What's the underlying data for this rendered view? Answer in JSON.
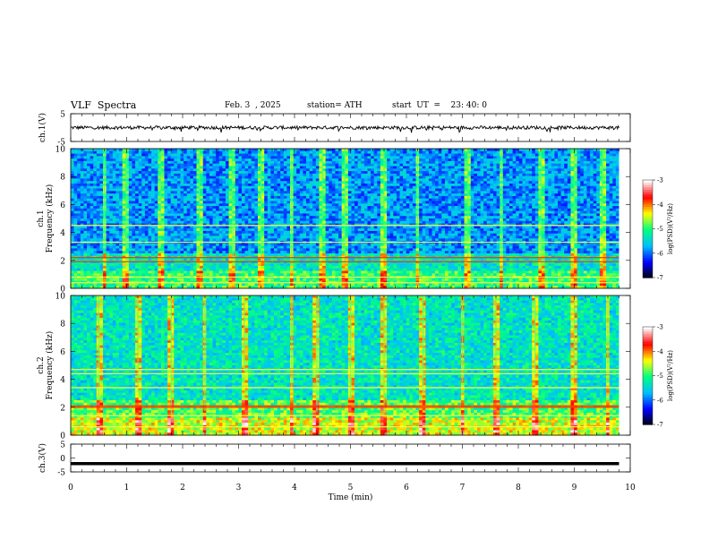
{
  "header": {
    "title": "VLF  Spectra",
    "date": "Feb. 3  , 2025",
    "station": "station= ATH",
    "start_ut": "start  UT  =    23: 40: 0"
  },
  "chart_data": [
    {
      "type": "line",
      "ylabel": "ch.1(V)",
      "ylim": [
        -5,
        5
      ],
      "y_ticks": [
        "5",
        "-5"
      ],
      "xlim": [
        0,
        10
      ],
      "description_values": {
        "baseline_V": 0.0,
        "noise_amplitude_V": 0.6
      },
      "color": "#000000"
    },
    {
      "type": "heatmap",
      "ylabel_line1": "ch.1",
      "ylabel_line2": "Frequency  (kHz)",
      "ylim": [
        0,
        10
      ],
      "y_ticks": [
        "0",
        "2",
        "4",
        "6",
        "8",
        "10"
      ],
      "xlim": [
        0,
        10
      ],
      "strong_bands_khz": [
        0.4,
        0.8,
        1.9,
        2.2,
        3.3,
        4.5
      ],
      "spherics_times_min": [
        0.6,
        1.0,
        1.6,
        2.3,
        2.9,
        3.4,
        3.95,
        4.5,
        4.9,
        5.6,
        6.2,
        7.1,
        7.7,
        8.4,
        9.0,
        9.5
      ],
      "colorbar": {
        "label": "log(PSD)(V²/Hz)",
        "ticks": [
          "-3",
          "-4",
          "-5",
          "-6",
          "-7"
        ],
        "range": [
          -7,
          -3
        ]
      }
    },
    {
      "type": "heatmap",
      "ylabel_line1": "ch.2",
      "ylabel_line2": "Frequency  (kHz)",
      "ylim": [
        0,
        10
      ],
      "y_ticks": [
        "0",
        "2",
        "4",
        "6",
        "8",
        "10"
      ],
      "xlim": [
        0,
        10
      ],
      "strong_bands_khz": [
        0.6,
        1.4,
        2.0,
        2.1,
        3.4,
        4.4,
        4.7
      ],
      "spherics_times_min": [
        0.5,
        1.2,
        1.8,
        2.4,
        3.1,
        3.95,
        4.4,
        5.0,
        5.6,
        6.3,
        7.0,
        7.6,
        8.3,
        9.0,
        9.6
      ],
      "colorbar": {
        "label": "log(PSD)(V²/Hz)",
        "ticks": [
          "-3",
          "-4",
          "-5",
          "-6",
          "-7"
        ],
        "range": [
          -7,
          -3
        ]
      }
    },
    {
      "type": "line",
      "ylabel": "ch.3(V)",
      "ylim": [
        -5,
        5
      ],
      "y_ticks": [
        "5",
        "0",
        "-5"
      ],
      "xlim": [
        0,
        10
      ],
      "description_values": {
        "baseline_V": -2.0
      },
      "color": "#000000"
    }
  ],
  "x_axis": {
    "label": "Time  (min)",
    "ticks": [
      "0",
      "1",
      "2",
      "3",
      "4",
      "5",
      "6",
      "7",
      "8",
      "9",
      "10"
    ],
    "data_end_min": 9.8
  },
  "colormap": [
    "#000000",
    "#0000ff",
    "#00bfff",
    "#00ff80",
    "#ffff00",
    "#ff0000",
    "#ffffff"
  ]
}
